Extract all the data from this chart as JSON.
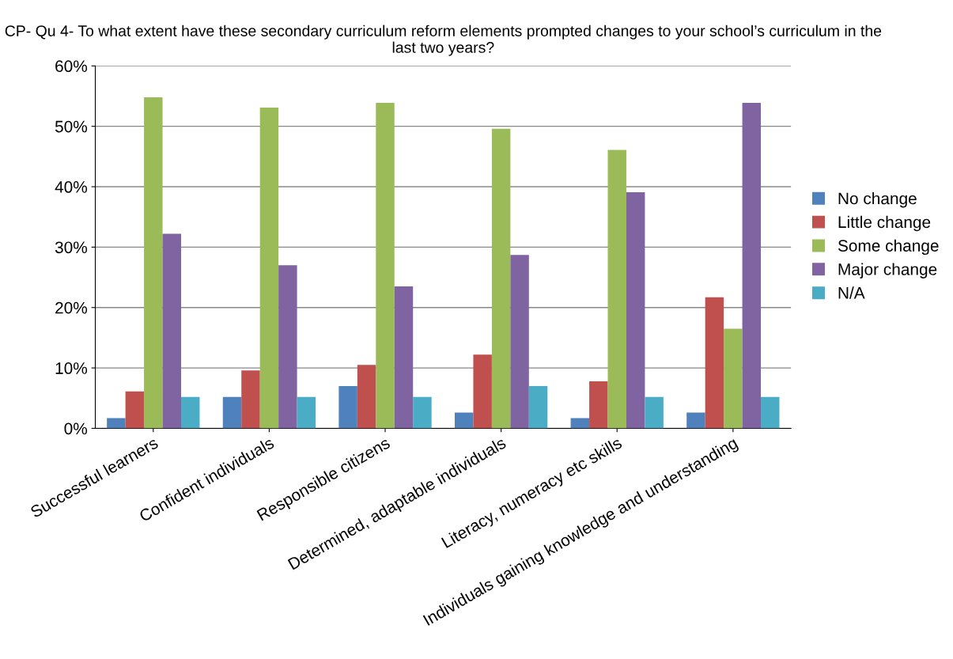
{
  "chart_data": {
    "type": "bar",
    "title": "CP- Qu 4- To what extent have these secondary curriculum reform elements prompted changes to your school’s curriculum in the last two years?",
    "categories": [
      "Successful learners",
      "Confident individuals",
      "Responsible citizens",
      "Determined, adaptable individuals",
      "Literacy, numeracy etc skills",
      "Individuals gaining knowledge and understanding"
    ],
    "series": [
      {
        "name": "No change",
        "color": "#4f81bd",
        "values": [
          1.7,
          5.2,
          7.0,
          2.6,
          1.7,
          2.6
        ]
      },
      {
        "name": "Little change",
        "color": "#c0504d",
        "values": [
          6.1,
          9.6,
          10.5,
          12.2,
          7.8,
          21.7
        ]
      },
      {
        "name": "Some change",
        "color": "#9bbb59",
        "values": [
          54.8,
          53.1,
          53.9,
          49.6,
          46.1,
          16.5
        ]
      },
      {
        "name": "Major change",
        "color": "#8064a2",
        "values": [
          32.2,
          27.0,
          23.5,
          28.7,
          39.1,
          53.9
        ]
      },
      {
        "name": "N/A",
        "color": "#4bacc6",
        "values": [
          5.2,
          5.2,
          5.2,
          7.0,
          5.2,
          5.2
        ]
      }
    ],
    "ylim": [
      0,
      60
    ],
    "yticks": [
      {
        "value": 0,
        "label": "0%"
      },
      {
        "value": 10,
        "label": "10%"
      },
      {
        "value": 20,
        "label": "20%"
      },
      {
        "value": 30,
        "label": "30%"
      },
      {
        "value": 40,
        "label": "40%"
      },
      {
        "value": 50,
        "label": "50%"
      },
      {
        "value": 60,
        "label": "60%"
      }
    ],
    "grid": "y",
    "legend": "right"
  }
}
